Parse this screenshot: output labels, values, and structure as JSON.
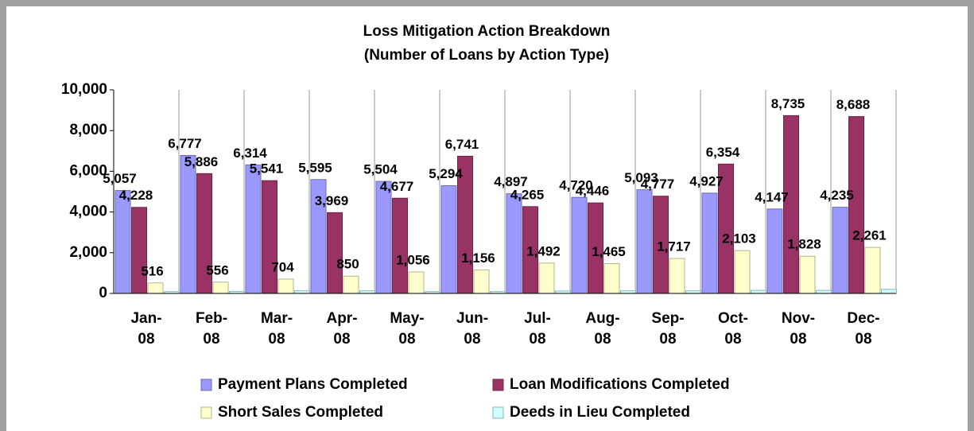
{
  "chart_data": {
    "type": "bar",
    "title": "Loss Mitigation Action Breakdown",
    "subtitle": "(Number of Loans by Action Type)",
    "categories": [
      "Jan-08",
      "Feb-08",
      "Mar-08",
      "Apr-08",
      "May-08",
      "Jun-08",
      "Jul-08",
      "Aug-08",
      "Sep-08",
      "Oct-08",
      "Nov-08",
      "Dec-08"
    ],
    "series": [
      {
        "name": "Payment Plans Completed",
        "color": "#9999ff",
        "values": [
          5057,
          6777,
          6314,
          5595,
          5504,
          5294,
          4897,
          4720,
          5093,
          4927,
          4147,
          4235
        ],
        "value_labels": [
          "5,057",
          "6,777",
          "6,314",
          "5,595",
          "5,504",
          "5,294",
          "4,897",
          "4,720",
          "5,093",
          "4,927",
          "4,147",
          "4,235"
        ]
      },
      {
        "name": "Loan Modifications Completed",
        "color": "#993366",
        "values": [
          4228,
          5886,
          5541,
          3969,
          4677,
          6741,
          4265,
          4446,
          4777,
          6354,
          8735,
          8688
        ],
        "value_labels": [
          "4,228",
          "5,886",
          "5,541",
          "3,969",
          "4,677",
          "6,741",
          "4,265",
          "4,446",
          "4,777",
          "6,354",
          "8,735",
          "8,688"
        ]
      },
      {
        "name": "Short Sales Completed",
        "color": "#ffffcc",
        "values": [
          516,
          556,
          704,
          850,
          1056,
          1156,
          1492,
          1465,
          1717,
          2103,
          1828,
          2261
        ],
        "value_labels": [
          "516",
          "556",
          "704",
          "850",
          "1,056",
          "1,156",
          "1,492",
          "1,465",
          "1,717",
          "2,103",
          "1,828",
          "2,261"
        ]
      },
      {
        "name": "Deeds in Lieu Completed",
        "color": "#ccffff",
        "values": [
          90,
          100,
          130,
          130,
          90,
          90,
          120,
          130,
          130,
          150,
          150,
          200
        ]
      }
    ],
    "ylim": [
      0,
      10000
    ],
    "yticks": [
      0,
      {
        "value": 2000,
        "label": "2,000"
      },
      {
        "value": 4000,
        "label": "4,000"
      },
      {
        "value": 6000,
        "label": "6,000"
      },
      {
        "value": 8000,
        "label": "8,000"
      },
      {
        "value": 10000,
        "label": "10,000"
      }
    ],
    "grid": false,
    "legend": "bottom"
  }
}
